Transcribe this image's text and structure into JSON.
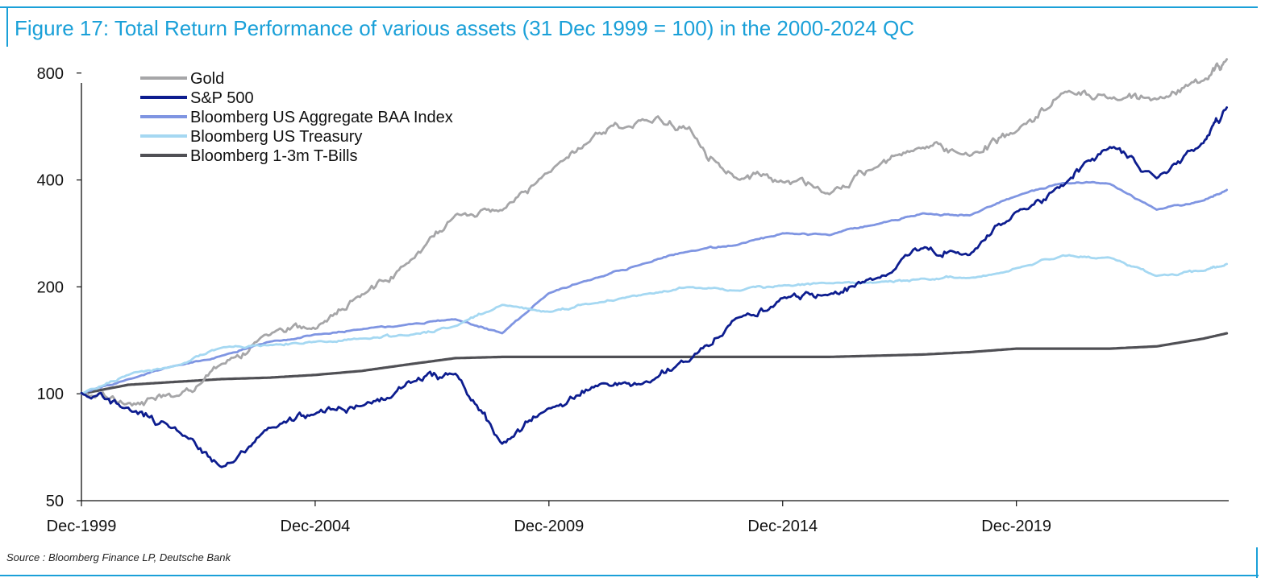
{
  "title": "Figure 17: Total Return Performance of various assets (31 Dec 1999 = 100) in the 2000-2024 QC",
  "source": "Source : Bloomberg Finance LP, Deutsche Bank",
  "chart_data": {
    "type": "line",
    "title": "Figure 17: Total Return Performance of various assets (31 Dec 1999 = 100) in the 2000-2024 QC",
    "xlabel": "",
    "ylabel": "",
    "y_scale": "log",
    "ylim": [
      50,
      1000
    ],
    "y_ticks": [
      50,
      100,
      200,
      400,
      800
    ],
    "x_ticks": [
      "Dec-1999",
      "Dec-2004",
      "Dec-2009",
      "Dec-2014",
      "Dec-2019"
    ],
    "x": [
      "1999-12",
      "2000-12",
      "2001-12",
      "2002-12",
      "2003-12",
      "2004-12",
      "2005-12",
      "2006-12",
      "2007-12",
      "2008-12",
      "2009-12",
      "2010-12",
      "2011-12",
      "2012-12",
      "2013-12",
      "2014-12",
      "2015-12",
      "2016-12",
      "2017-12",
      "2018-12",
      "2019-12",
      "2020-12",
      "2021-12",
      "2022-12",
      "2023-12",
      "2024-06"
    ],
    "legend_position": "top-left",
    "series": [
      {
        "name": "Gold",
        "color": "#a6a6a8",
        "values": [
          100,
          94,
          98,
          122,
          146,
          153,
          190,
          235,
          320,
          330,
          418,
          540,
          590,
          560,
          405,
          395,
          365,
          435,
          495,
          470,
          545,
          705,
          680,
          675,
          760,
          875
        ]
      },
      {
        "name": "S&P 500",
        "color": "#0d1d8f",
        "values": [
          100,
          91,
          80,
          62,
          80,
          88,
          93,
          108,
          114,
          72,
          91,
          105,
          107,
          124,
          164,
          187,
          190,
          212,
          258,
          247,
          325,
          385,
          495,
          405,
          510,
          640
        ]
      },
      {
        "name": "Bloomberg US Aggregate BAA Index",
        "color": "#7f95e2",
        "values": [
          100,
          110,
          120,
          128,
          140,
          147,
          152,
          157,
          162,
          148,
          192,
          212,
          232,
          252,
          262,
          283,
          280,
          300,
          322,
          318,
          360,
          392,
          390,
          330,
          350,
          375
        ]
      },
      {
        "name": "Bloomberg US Treasury",
        "color": "#a5d8f2",
        "values": [
          100,
          113,
          120,
          135,
          137,
          140,
          143,
          146,
          155,
          178,
          170,
          180,
          190,
          200,
          195,
          202,
          205,
          206,
          211,
          212,
          226,
          245,
          242,
          215,
          222,
          232
        ]
      },
      {
        "name": "Bloomberg 1-3m T-Bills",
        "color": "#505055",
        "values": [
          100,
          106,
          108,
          110,
          111,
          113,
          116,
          121,
          126,
          127,
          127,
          127,
          127,
          127,
          127,
          127,
          127,
          128,
          129,
          131,
          134,
          134,
          134,
          136,
          143,
          148
        ]
      }
    ]
  }
}
